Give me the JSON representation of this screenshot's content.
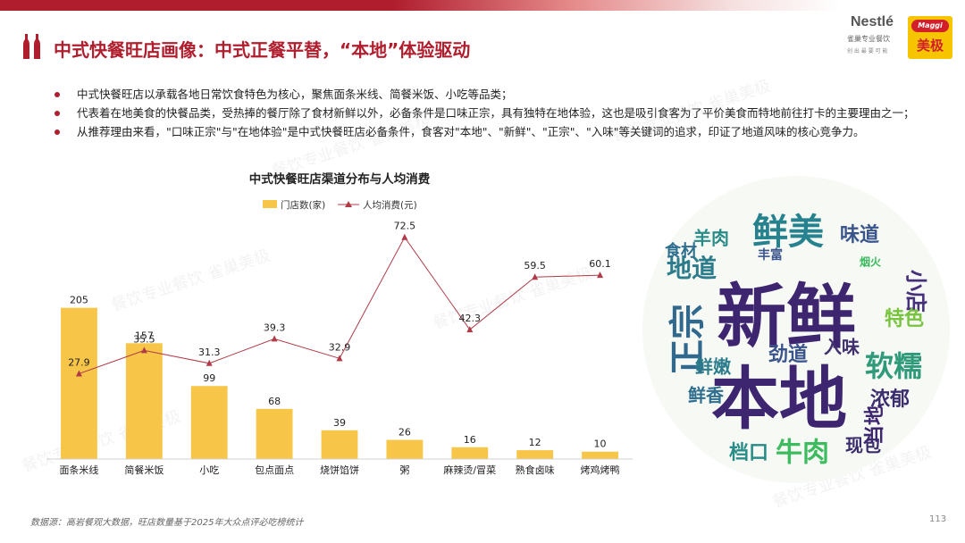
{
  "slide": {
    "title": "中式快餐旺店画像：中式正餐平替，“本地”体验驱动",
    "page_number": "113",
    "source_note": "数据源：高岩餐观大数据，旺店数量基于2025年大众点评必吃榜统计",
    "watermark": "餐饮专业餐饮 雀巢美极",
    "bullets": [
      "中式快餐旺店以承载各地日常饮食特色为核心，聚焦面条米线、简餐米饭、小吃等品类；",
      "代表着在地美食的快餐品类，受热捧的餐厅除了食材新鲜以外，必备条件是口味正宗，具有独特在地体验，这也是吸引食客为了平价美食而特地前往打卡的主要理由之一；",
      "从推荐理由来看，\"口味正宗\"与\"在地体验\"是中式快餐旺店必备条件，食客对\"本地\"、\"新鲜\"、\"正宗\"、\"入味\"等关键词的追求，印证了地道风味的核心竞争力。"
    ],
    "accent_color": "#b01e2e"
  },
  "logo": {
    "brand1": "Nestlé",
    "brand1_sub": "雀巢专业餐饮",
    "brand1_tagline": "创 出 最 要 可 能",
    "brand2": "Maggi",
    "brand2_cn": "美极"
  },
  "chart_data": {
    "type": "bar",
    "title": "中式快餐旺店渠道分布与人均消费",
    "categories": [
      "面条米线",
      "简餐米饭",
      "小吃",
      "包点面点",
      "烧饼馅饼",
      "粥",
      "麻辣烫/冒菜",
      "熟食卤味",
      "烤鸡烤鸭"
    ],
    "series": [
      {
        "name": "门店数(家)",
        "type": "bar",
        "color": "#f7c648",
        "values": [
          205,
          157,
          99,
          68,
          39,
          26,
          16,
          12,
          10
        ]
      },
      {
        "name": "人均消费(元)",
        "type": "line",
        "color": "#b03a48",
        "values": [
          27.9,
          35.5,
          31.3,
          39.3,
          32.9,
          72.5,
          42.3,
          59.5,
          60.1
        ]
      }
    ],
    "legend_position": "top",
    "grid": false
  },
  "wordcloud": {
    "words": [
      {
        "text": "新鲜",
        "color": "#3d2570"
      },
      {
        "text": "本地",
        "color": "#3d2570"
      },
      {
        "text": "鲜美",
        "color": "#26828e"
      },
      {
        "text": "正宗",
        "color": "#31688e"
      },
      {
        "text": "软糯",
        "color": "#2f9a7a"
      },
      {
        "text": "牛肉",
        "color": "#3dbb5f"
      },
      {
        "text": "地道",
        "color": "#2c7c8c"
      },
      {
        "text": "小店",
        "color": "#46307a"
      },
      {
        "text": "味道",
        "color": "#3a548c"
      },
      {
        "text": "羊肉",
        "color": "#2a8c88"
      },
      {
        "text": "特色",
        "color": "#78c43f"
      },
      {
        "text": "浓郁",
        "color": "#3b2d6e"
      },
      {
        "text": "劲道",
        "color": "#3a548c"
      },
      {
        "text": "入味",
        "color": "#40306e"
      },
      {
        "text": "鲜嫩",
        "color": "#2c7c8c"
      },
      {
        "text": "鲜香",
        "color": "#2e6e8e"
      },
      {
        "text": "档口",
        "color": "#2a8c88"
      },
      {
        "text": "现包",
        "color": "#3b2d6e"
      },
      {
        "text": "当地",
        "color": "#3d2570"
      },
      {
        "text": "食材",
        "color": "#2e6e8e"
      },
      {
        "text": "丰富",
        "color": "#3a548c"
      },
      {
        "text": "烟火",
        "color": "#3dbb5f"
      }
    ]
  }
}
